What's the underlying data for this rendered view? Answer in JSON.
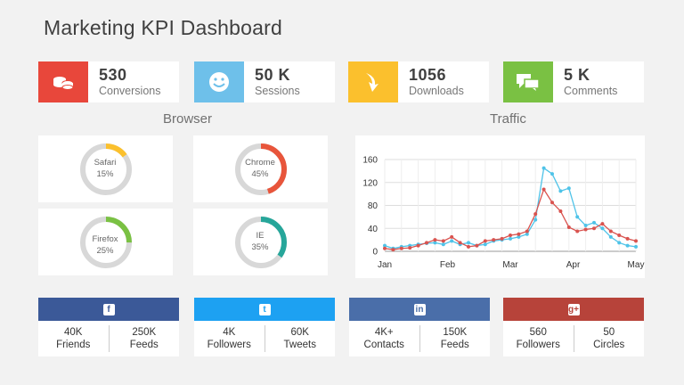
{
  "title": "Marketing KPI Dashboard",
  "kpis": [
    {
      "value": "530",
      "label": "Conversions",
      "color": "#e8473b",
      "icon": "coins-icon"
    },
    {
      "value": "50 K",
      "label": "Sessions",
      "color": "#6ec0ea",
      "icon": "smiley-icon"
    },
    {
      "value": "1056",
      "label": "Downloads",
      "color": "#fbc02d",
      "icon": "download-arrow-icon"
    },
    {
      "value": "5 K",
      "label": "Comments",
      "color": "#7ac143",
      "icon": "chat-bubbles-icon"
    }
  ],
  "browser": {
    "title": "Browser",
    "items": [
      {
        "name": "Safari",
        "pct": "15%",
        "value": 15,
        "color": "#fbc02d"
      },
      {
        "name": "Chrome",
        "pct": "45%",
        "value": 45,
        "color": "#e8553b"
      },
      {
        "name": "Firefox",
        "pct": "25%",
        "value": 25,
        "color": "#7ac143"
      },
      {
        "name": "IE",
        "pct": "35%",
        "value": 35,
        "color": "#26a69a"
      }
    ]
  },
  "traffic": {
    "title": "Traffic"
  },
  "chart_data": {
    "type": "line",
    "x_ticks": [
      "Jan",
      "Feb",
      "Mar",
      "Apr",
      "May"
    ],
    "y_ticks": [
      0,
      40,
      80,
      120,
      160
    ],
    "ylim": [
      0,
      160
    ],
    "grid": true,
    "series": [
      {
        "color": "#4fc3e8",
        "values": [
          10,
          5,
          8,
          10,
          12,
          14,
          15,
          12,
          18,
          12,
          15,
          10,
          12,
          18,
          20,
          22,
          25,
          30,
          55,
          145,
          135,
          105,
          110,
          60,
          45,
          50,
          40,
          25,
          15,
          10,
          8
        ]
      },
      {
        "color": "#d9534f",
        "values": [
          5,
          3,
          5,
          6,
          10,
          15,
          20,
          18,
          25,
          15,
          8,
          10,
          18,
          20,
          22,
          28,
          30,
          35,
          65,
          108,
          85,
          70,
          42,
          35,
          38,
          40,
          48,
          35,
          28,
          22,
          18
        ]
      }
    ]
  },
  "social": [
    {
      "network": "Facebook",
      "glyph": "f",
      "icon": "facebook-icon",
      "color": "#3b5998",
      "stats": [
        {
          "value": "40K",
          "label": "Friends"
        },
        {
          "value": "250K",
          "label": "Feeds"
        }
      ]
    },
    {
      "network": "Twitter",
      "glyph": "t",
      "icon": "twitter-icon",
      "color": "#1da1f2",
      "stats": [
        {
          "value": "4K",
          "label": "Followers"
        },
        {
          "value": "60K",
          "label": "Tweets"
        }
      ]
    },
    {
      "network": "LinkedIn",
      "glyph": "in",
      "icon": "linkedin-icon",
      "color": "#4a6ea9",
      "stats": [
        {
          "value": "4K+",
          "label": "Contacts"
        },
        {
          "value": "150K",
          "label": "Feeds"
        }
      ]
    },
    {
      "network": "Google+",
      "glyph": "g+",
      "icon": "google-plus-icon",
      "color": "#b7433a",
      "stats": [
        {
          "value": "560",
          "label": "Followers"
        },
        {
          "value": "50",
          "label": "Circles"
        }
      ]
    }
  ]
}
